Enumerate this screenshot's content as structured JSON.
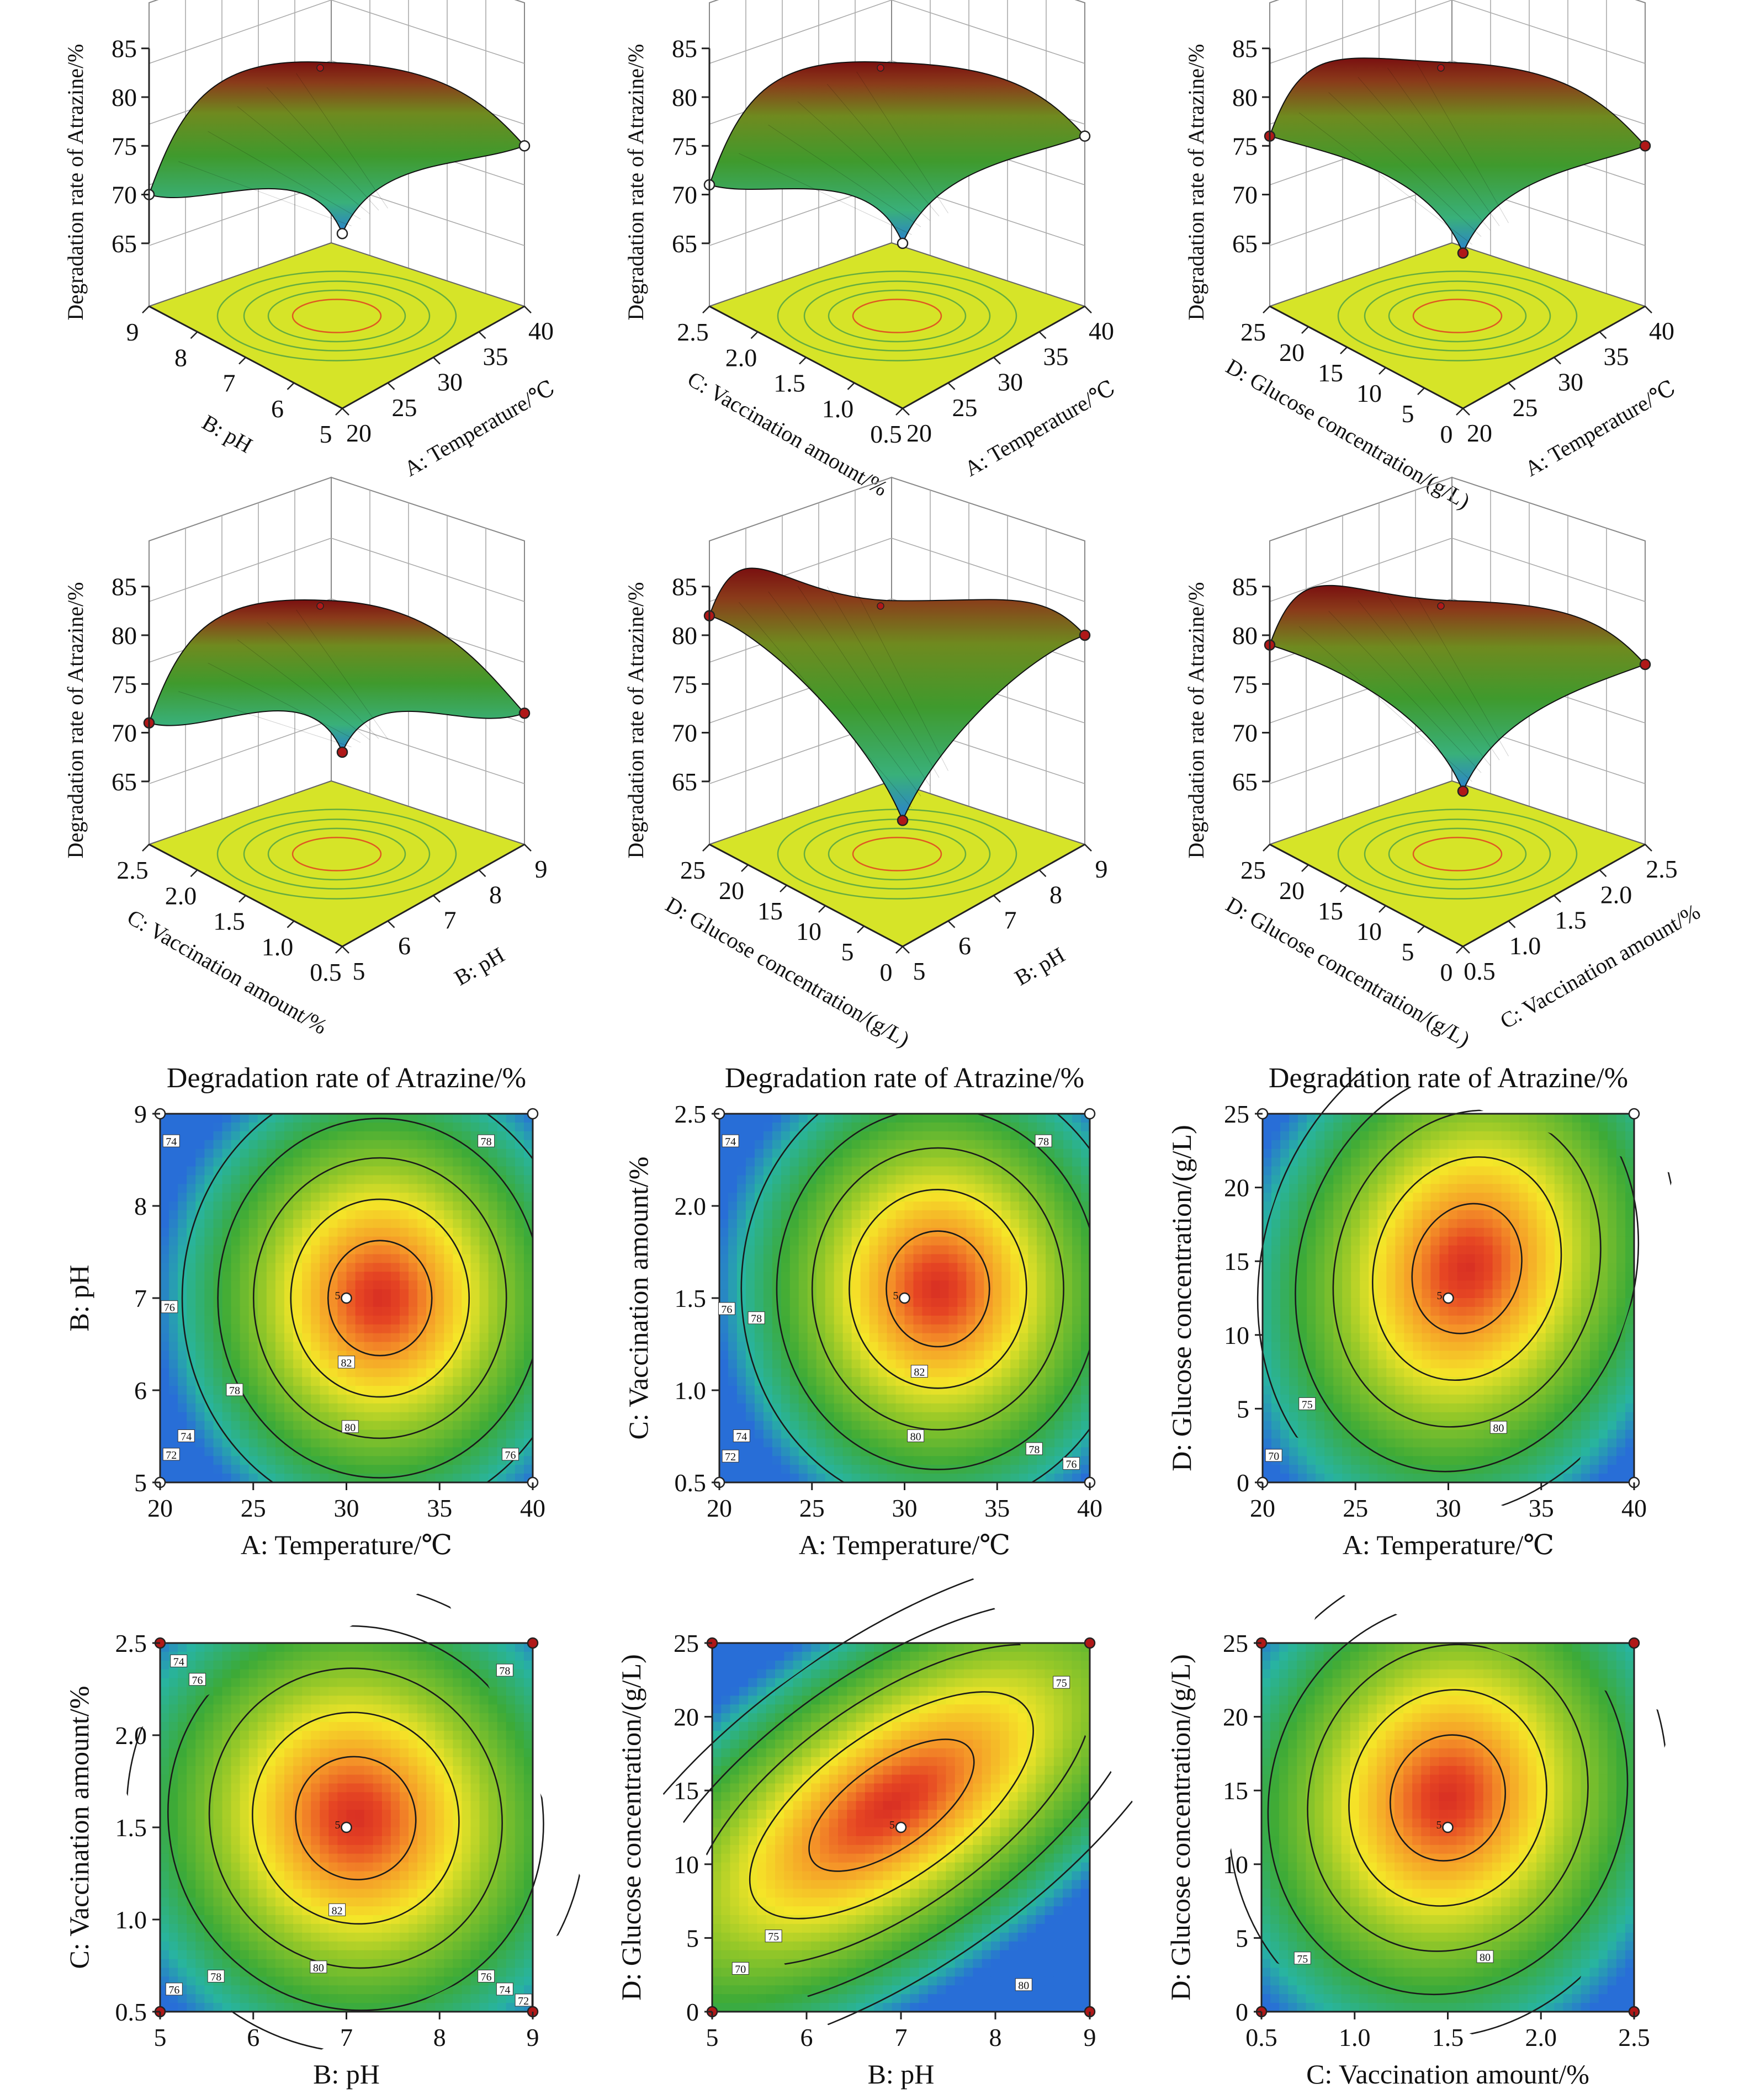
{
  "colors": {
    "high": "#d73027",
    "mid": "#f4e61e",
    "low": "#2e9e3c",
    "floor": "#d8e62a",
    "lowest": "#2a7fd1"
  },
  "surfaces": [
    {
      "id": "AB",
      "x_label": "A: Temperature/℃",
      "y_label": "B: pH",
      "z_label": "Degradation rate of Atrazine/%",
      "x_ticks": [
        "20",
        "25",
        "30",
        "35",
        "40"
      ],
      "y_ticks": [
        "5",
        "6",
        "7",
        "8",
        "9"
      ],
      "z_ticks": [
        "65",
        "70",
        "75",
        "80",
        "85"
      ],
      "corners": {
        "left": 70,
        "right": 75,
        "front": 66,
        "back": 83
      },
      "peak": 83
    },
    {
      "id": "AC",
      "x_label": "A: Temperature/℃",
      "y_label": "C: Vaccination amount/%",
      "z_label": "Degradation rate of Atrazine/%",
      "x_ticks": [
        "20",
        "25",
        "30",
        "35",
        "40"
      ],
      "y_ticks": [
        "0.5",
        "1.0",
        "1.5",
        "2.0",
        "2.5"
      ],
      "z_ticks": [
        "65",
        "70",
        "75",
        "80",
        "85"
      ],
      "corners": {
        "left": 71,
        "right": 76,
        "front": 65,
        "back": 83
      },
      "peak": 83
    },
    {
      "id": "AD",
      "x_label": "A: Temperature/℃",
      "y_label": "D: Glucose concentration/(g/L)",
      "z_label": "Degradation rate of Atrazine/%",
      "x_ticks": [
        "20",
        "25",
        "30",
        "35",
        "40"
      ],
      "y_ticks": [
        "0",
        "5",
        "10",
        "15",
        "20",
        "25"
      ],
      "z_ticks": [
        "65",
        "70",
        "75",
        "80",
        "85"
      ],
      "corners": {
        "left": 76,
        "right": 75,
        "front": 64,
        "back": 83
      },
      "peak": 83
    },
    {
      "id": "BC",
      "x_label": "B: pH",
      "y_label": "C: Vaccination amount/%",
      "z_label": "Degradation rate of Atrazine/%",
      "x_ticks": [
        "5",
        "6",
        "7",
        "8",
        "9"
      ],
      "y_ticks": [
        "0.5",
        "1.0",
        "1.5",
        "2.0",
        "2.5"
      ],
      "z_ticks": [
        "65",
        "70",
        "75",
        "80",
        "85"
      ],
      "corners": {
        "left": 71,
        "right": 72,
        "front": 68,
        "back": 83
      },
      "peak": 83
    },
    {
      "id": "BD",
      "x_label": "B: pH",
      "y_label": "D: Glucose concentration/(g/L)",
      "z_label": "Degradation rate of Atrazine/%",
      "x_ticks": [
        "5",
        "6",
        "7",
        "8",
        "9"
      ],
      "y_ticks": [
        "0",
        "5",
        "10",
        "15",
        "20",
        "25"
      ],
      "z_ticks": [
        "65",
        "70",
        "75",
        "80",
        "85"
      ],
      "corners": {
        "left": 82,
        "right": 80,
        "front": 61,
        "back": 83
      },
      "peak": 83
    },
    {
      "id": "CD",
      "x_label": "C: Vaccination amount/%",
      "y_label": "D: Glucose concentration/(g/L)",
      "z_label": "Degradation rate of Atrazine/%",
      "x_ticks": [
        "0.5",
        "1.0",
        "1.5",
        "2.0",
        "2.5"
      ],
      "y_ticks": [
        "0",
        "5",
        "10",
        "15",
        "20",
        "25"
      ],
      "z_ticks": [
        "65",
        "70",
        "75",
        "80",
        "85"
      ],
      "corners": {
        "left": 79,
        "right": 77,
        "front": 64,
        "back": 83
      },
      "peak": 83
    }
  ],
  "chart_data": [
    {
      "type": "heatmap",
      "title": "Degradation rate of Atrazine/%",
      "xlabel": "A: Temperature/℃",
      "ylabel": "B: pH",
      "xlim": [
        20,
        40
      ],
      "ylim": [
        5,
        9
      ],
      "x_ticks": [
        "20",
        "25",
        "30",
        "35",
        "40"
      ],
      "y_ticks": [
        "5",
        "6",
        "7",
        "8",
        "9"
      ],
      "center": [
        31.8,
        7.0
      ],
      "radii": [
        8.7,
        1.95
      ],
      "tilt": 0,
      "peak": 83.3,
      "design_center": [
        30,
        7
      ],
      "center_label": "5",
      "contour_labels": [
        {
          "v": "74",
          "x": 20.6,
          "y": 8.7
        },
        {
          "v": "78",
          "x": 37.5,
          "y": 8.7
        },
        {
          "v": "76",
          "x": 20.5,
          "y": 6.9
        },
        {
          "v": "78",
          "x": 24.0,
          "y": 6.0
        },
        {
          "v": "82",
          "x": 30.0,
          "y": 6.3
        },
        {
          "v": "80",
          "x": 30.2,
          "y": 5.6
        },
        {
          "v": "74",
          "x": 21.4,
          "y": 5.5
        },
        {
          "v": "72",
          "x": 20.6,
          "y": 5.3
        },
        {
          "v": "76",
          "x": 38.8,
          "y": 5.3
        }
      ],
      "corner_points": [
        [
          20,
          5
        ],
        [
          20,
          9
        ],
        [
          40,
          5
        ],
        [
          40,
          9
        ]
      ]
    },
    {
      "type": "heatmap",
      "title": "Degradation rate of Atrazine/%",
      "xlabel": "A: Temperature/℃",
      "ylabel": "C: Vaccination amount/%",
      "xlim": [
        20,
        40
      ],
      "ylim": [
        0.5,
        2.5
      ],
      "x_ticks": [
        "20",
        "25",
        "30",
        "35",
        "40"
      ],
      "y_ticks": [
        "0.5",
        "1.0",
        "1.5",
        "2.0",
        "2.5"
      ],
      "center": [
        31.8,
        1.55
      ],
      "radii": [
        8.7,
        0.98
      ],
      "tilt": 0,
      "peak": 83.3,
      "design_center": [
        30,
        1.5
      ],
      "center_label": "5",
      "contour_labels": [
        {
          "v": "74",
          "x": 20.6,
          "y": 2.35
        },
        {
          "v": "78",
          "x": 37.5,
          "y": 2.35
        },
        {
          "v": "76",
          "x": 20.4,
          "y": 1.44
        },
        {
          "v": "78",
          "x": 22.0,
          "y": 1.39
        },
        {
          "v": "82",
          "x": 30.8,
          "y": 1.1
        },
        {
          "v": "80",
          "x": 30.6,
          "y": 0.75
        },
        {
          "v": "74",
          "x": 21.2,
          "y": 0.75
        },
        {
          "v": "72",
          "x": 20.6,
          "y": 0.64
        },
        {
          "v": "78",
          "x": 37.0,
          "y": 0.68
        },
        {
          "v": "76",
          "x": 39.0,
          "y": 0.6
        }
      ],
      "corner_points": [
        [
          20,
          0.5
        ],
        [
          20,
          2.5
        ],
        [
          40,
          0.5
        ],
        [
          40,
          2.5
        ]
      ]
    },
    {
      "type": "heatmap",
      "title": "Degradation rate of Atrazine/%",
      "xlabel": "A: Temperature/℃",
      "ylabel": "D: Glucose concentration/(g/L)",
      "xlim": [
        20,
        40
      ],
      "ylim": [
        0,
        25
      ],
      "x_ticks": [
        "20",
        "25",
        "30",
        "35",
        "40"
      ],
      "y_ticks": [
        "0",
        "5",
        "10",
        "15",
        "20",
        "25"
      ],
      "center": [
        31.0,
        14.5
      ],
      "radii": [
        9.0,
        14.0
      ],
      "tilt": -0.32,
      "peak": 83.0,
      "design_center": [
        30,
        12.5
      ],
      "center_label": "5",
      "contour_labels": [
        {
          "v": "75",
          "x": 22.4,
          "y": 5.3
        },
        {
          "v": "70",
          "x": 20.6,
          "y": 1.8
        },
        {
          "v": "80",
          "x": 32.7,
          "y": 3.7
        }
      ],
      "corner_points": [
        [
          20,
          0
        ],
        [
          20,
          25
        ],
        [
          40,
          0
        ],
        [
          40,
          25
        ]
      ]
    },
    {
      "type": "heatmap",
      "title": "",
      "xlabel": "B: pH",
      "ylabel": "C: Vaccination amount/%",
      "xlim": [
        5,
        9
      ],
      "ylim": [
        0.5,
        2.5
      ],
      "x_ticks": [
        "5",
        "6",
        "7",
        "8",
        "9"
      ],
      "y_ticks": [
        "0.5",
        "1.0",
        "1.5",
        "2.0",
        "2.5"
      ],
      "center": [
        7.1,
        1.55
      ],
      "radii": [
        2.0,
        1.05
      ],
      "tilt": 0.45,
      "peak": 83.2,
      "design_center": [
        7,
        1.5
      ],
      "center_label": "5",
      "contour_labels": [
        {
          "v": "74",
          "x": 5.2,
          "y": 2.4
        },
        {
          "v": "76",
          "x": 5.4,
          "y": 2.3
        },
        {
          "v": "78",
          "x": 8.7,
          "y": 2.35
        },
        {
          "v": "82",
          "x": 6.9,
          "y": 1.05
        },
        {
          "v": "80",
          "x": 6.7,
          "y": 0.74
        },
        {
          "v": "78",
          "x": 5.6,
          "y": 0.69
        },
        {
          "v": "76",
          "x": 5.15,
          "y": 0.62
        },
        {
          "v": "76",
          "x": 8.5,
          "y": 0.69
        },
        {
          "v": "74",
          "x": 8.7,
          "y": 0.62
        },
        {
          "v": "72",
          "x": 8.9,
          "y": 0.56
        }
      ],
      "corner_points": [
        [
          5,
          0.5
        ],
        [
          5,
          2.5
        ],
        [
          9,
          0.5
        ],
        [
          9,
          2.5
        ]
      ]
    },
    {
      "type": "heatmap",
      "title": "",
      "xlabel": "B: pH",
      "ylabel": "D: Glucose concentration/(g/L)",
      "xlim": [
        5,
        9
      ],
      "ylim": [
        0,
        25
      ],
      "x_ticks": [
        "5",
        "6",
        "7",
        "8",
        "9"
      ],
      "y_ticks": [
        "0",
        "5",
        "10",
        "15",
        "20",
        "25"
      ],
      "center": [
        6.9,
        14.0
      ],
      "radii": [
        3.2,
        9.0
      ],
      "tilt": 0.62,
      "peak": 83.0,
      "design_center": [
        7,
        12.5
      ],
      "center_label": "5",
      "contour_labels": [
        {
          "v": "75",
          "x": 8.7,
          "y": 22.3
        },
        {
          "v": "75",
          "x": 5.65,
          "y": 5.1
        },
        {
          "v": "70",
          "x": 5.3,
          "y": 2.9
        },
        {
          "v": "80",
          "x": 8.3,
          "y": 1.8
        }
      ],
      "corner_points": [
        [
          5,
          0
        ],
        [
          5,
          25
        ],
        [
          9,
          0
        ],
        [
          9,
          25
        ]
      ]
    },
    {
      "type": "heatmap",
      "title": "",
      "xlabel": "C: Vaccination amount/%",
      "ylabel": "D: Glucose concentration/(g/L)",
      "xlim": [
        0.5,
        2.5
      ],
      "ylim": [
        0,
        25
      ],
      "x_ticks": [
        "0.5",
        "1.0",
        "1.5",
        "2.0",
        "2.5"
      ],
      "y_ticks": [
        "0",
        "5",
        "10",
        "15",
        "20",
        "25"
      ],
      "center": [
        1.5,
        14.5
      ],
      "radii": [
        0.95,
        13.5
      ],
      "tilt": -0.35,
      "peak": 83.0,
      "design_center": [
        1.5,
        12.5
      ],
      "center_label": "5",
      "contour_labels": [
        {
          "v": "75",
          "x": 0.72,
          "y": 3.6
        },
        {
          "v": "80",
          "x": 1.7,
          "y": 3.7
        }
      ],
      "corner_points": [
        [
          0.5,
          0
        ],
        [
          0.5,
          25
        ],
        [
          2.5,
          0
        ],
        [
          2.5,
          25
        ]
      ]
    }
  ]
}
